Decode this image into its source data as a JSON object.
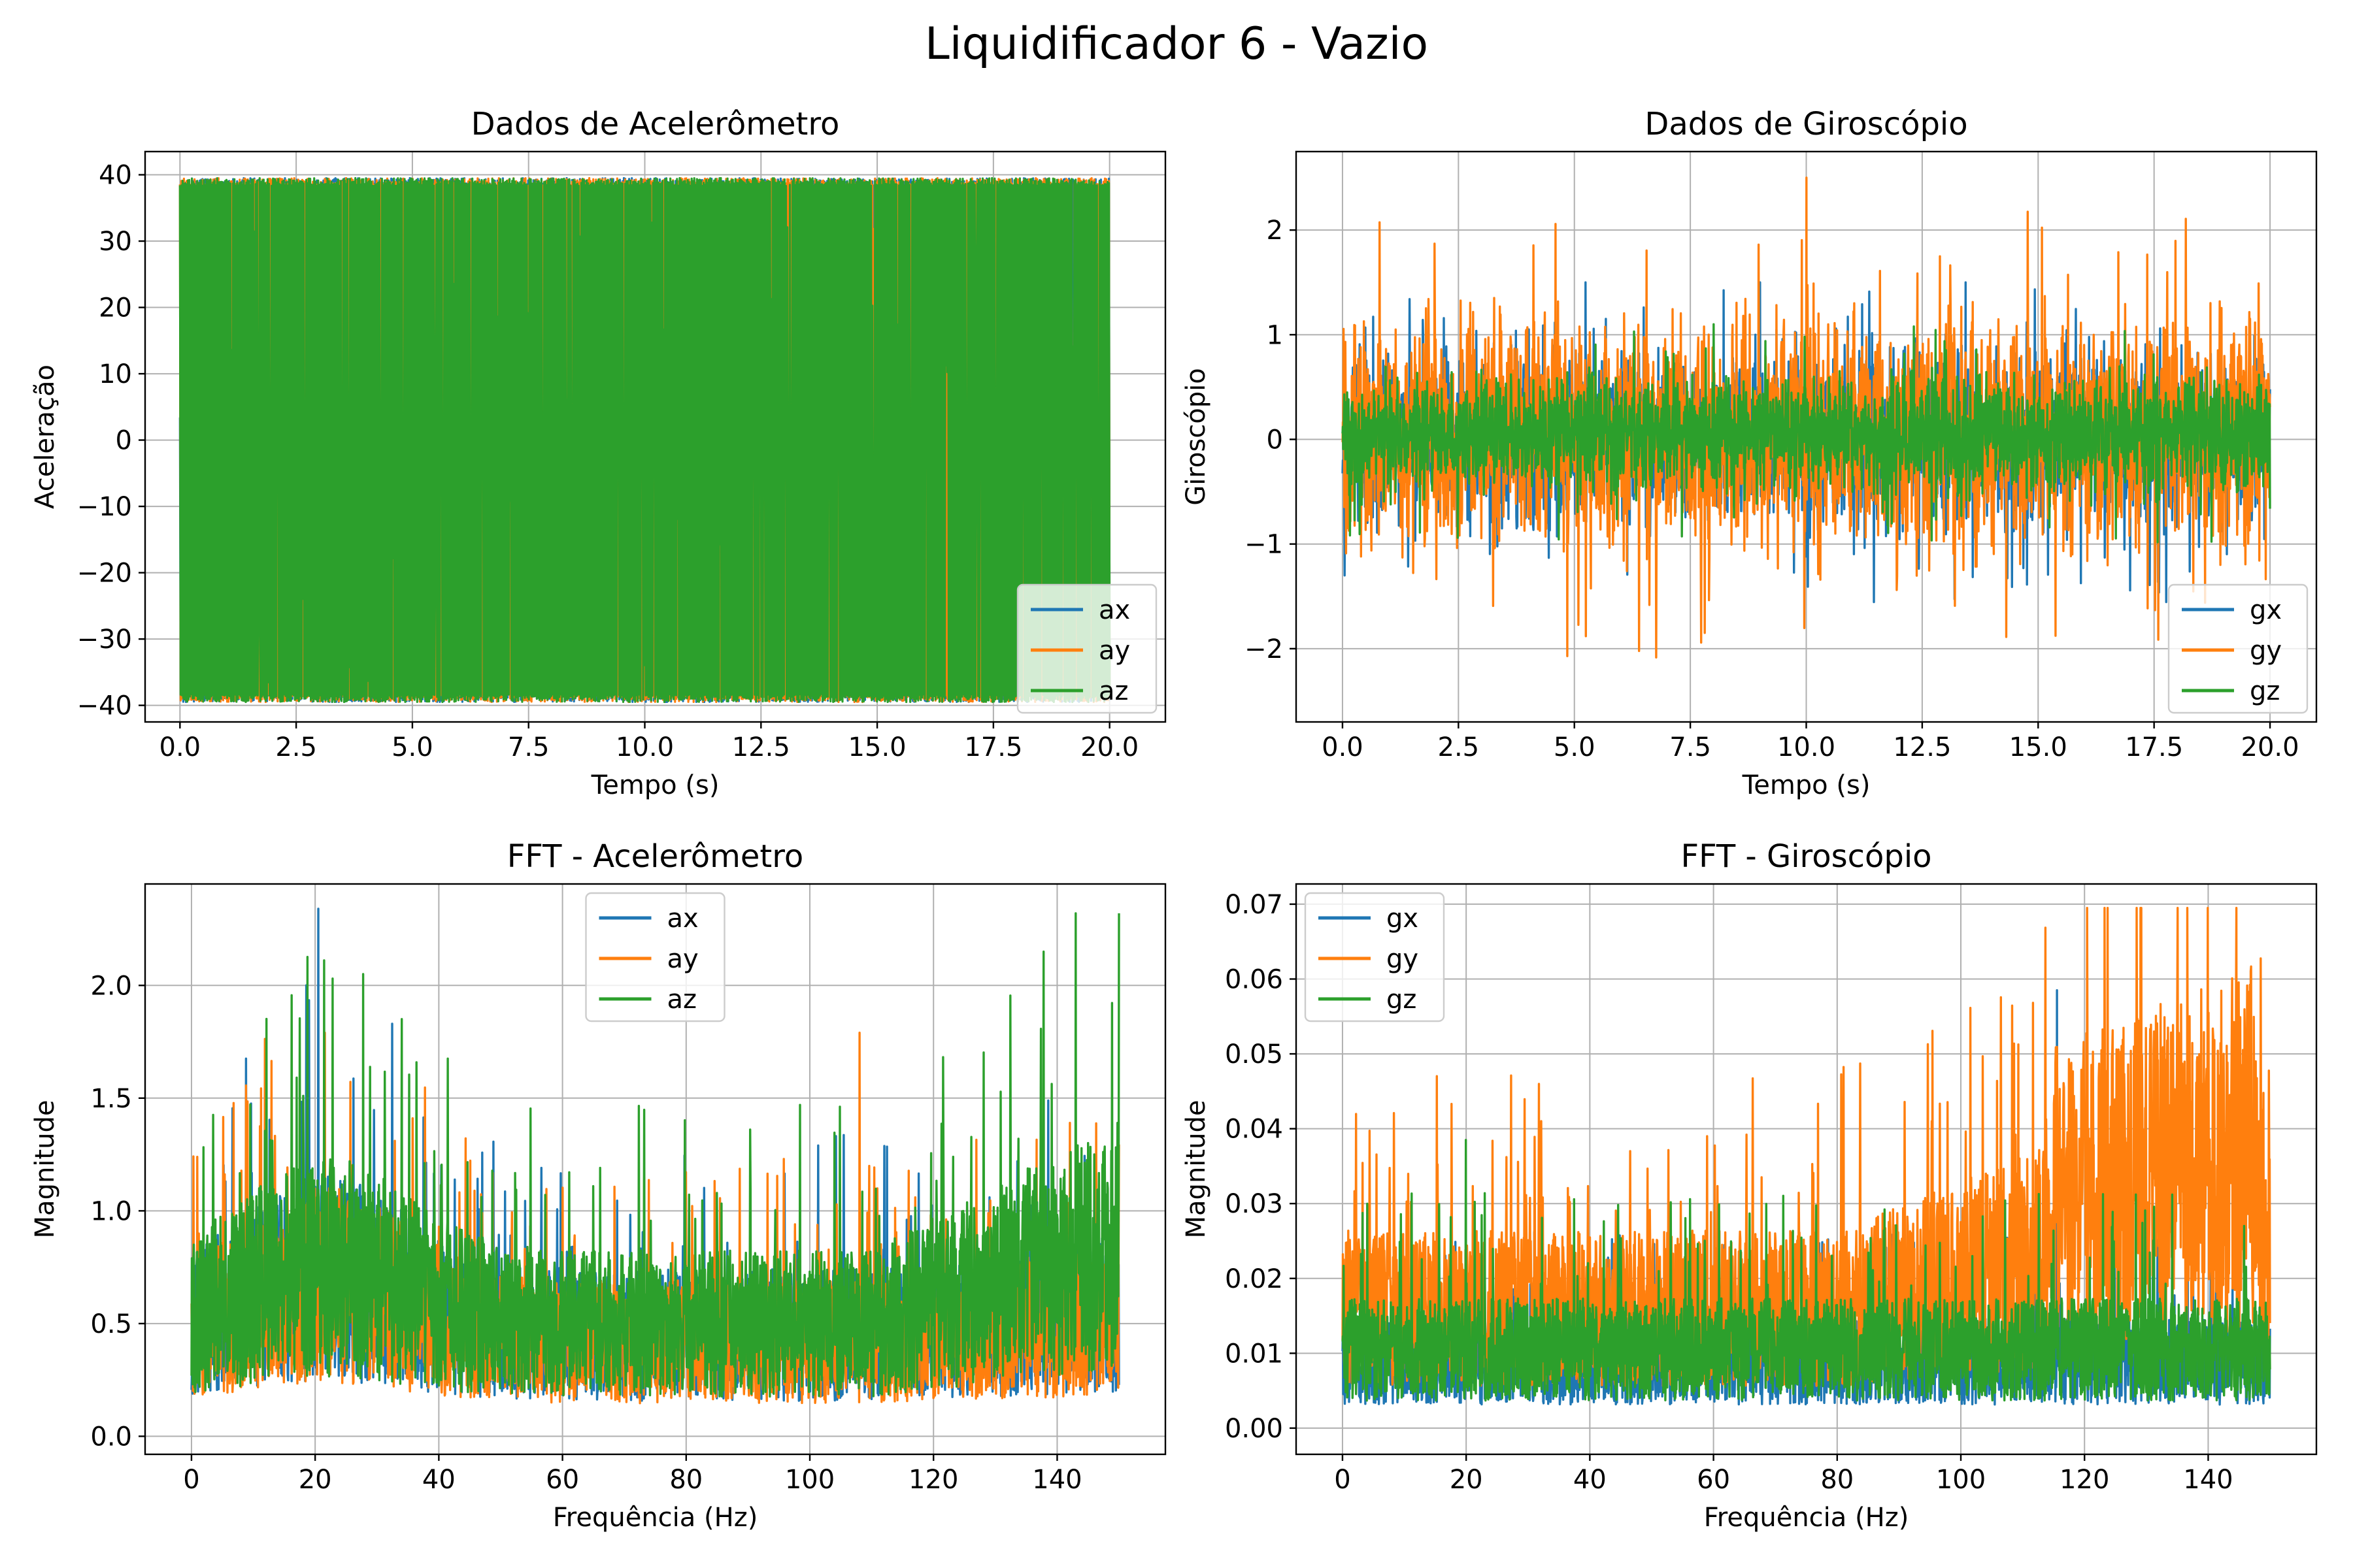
{
  "suptitle": "Liquidificador 6 - Vazio",
  "colors": {
    "series1": "#1f77b4",
    "series2": "#ff7f0e",
    "series3": "#2ca02c",
    "grid": "#b0b0b0"
  },
  "chart_data": [
    {
      "id": "acc",
      "type": "line",
      "title": "Dados de Acelerômetro",
      "xlabel": "Tempo (s)",
      "ylabel": "Aceleração",
      "xlim": [
        -0.75,
        21.2
      ],
      "ylim": [
        -42.5,
        43.5
      ],
      "xticks": [
        "0.0",
        "2.5",
        "5.0",
        "7.5",
        "10.0",
        "12.5",
        "15.0",
        "17.5",
        "20.0"
      ],
      "xtick_values": [
        0,
        2.5,
        5,
        7.5,
        10,
        12.5,
        15,
        17.5,
        20
      ],
      "yticks": [
        "−40",
        "−30",
        "−20",
        "−10",
        "0",
        "10",
        "20",
        "30",
        "40"
      ],
      "ytick_values": [
        -40,
        -30,
        -20,
        -10,
        0,
        10,
        20,
        30,
        40
      ],
      "grid": true,
      "legend_position": "lower-right",
      "series": [
        {
          "name": "ax",
          "x_range": [
            0,
            20
          ],
          "min": -39.5,
          "max": 39.5,
          "typical_band": [
            -39.5,
            39.5
          ]
        },
        {
          "name": "ay",
          "x_range": [
            0,
            20
          ],
          "min": -39.5,
          "max": 39.5,
          "typical_band": [
            -39.5,
            39.5
          ]
        },
        {
          "name": "az",
          "x_range": [
            0,
            20
          ],
          "min": -39.5,
          "max": 39.5,
          "typical_band": [
            -39.5,
            39.5
          ]
        }
      ]
    },
    {
      "id": "gyro",
      "type": "line",
      "title": "Dados de Giroscópio",
      "xlabel": "Tempo (s)",
      "ylabel": "Giroscópio",
      "xlim": [
        -1.0,
        21.0
      ],
      "ylim": [
        -2.7,
        2.75
      ],
      "xticks": [
        "0.0",
        "2.5",
        "5.0",
        "7.5",
        "10.0",
        "12.5",
        "15.0",
        "17.5",
        "20.0"
      ],
      "xtick_values": [
        0,
        2.5,
        5,
        7.5,
        10,
        12.5,
        15,
        17.5,
        20
      ],
      "yticks": [
        "−2",
        "−1",
        "0",
        "1",
        "2"
      ],
      "ytick_values": [
        -2,
        -1,
        0,
        1,
        2
      ],
      "grid": true,
      "legend_position": "lower-right",
      "series": [
        {
          "name": "gx",
          "x_range": [
            0,
            20
          ],
          "min": -2.0,
          "max": 1.5,
          "typical_band": [
            -1.0,
            1.0
          ]
        },
        {
          "name": "gy",
          "x_range": [
            0,
            20
          ],
          "min": -2.45,
          "max": 2.5,
          "typical_band": [
            -1.3,
            1.4
          ]
        },
        {
          "name": "gz",
          "x_range": [
            0,
            20
          ],
          "min": -1.0,
          "max": 1.1,
          "typical_band": [
            -0.6,
            0.7
          ]
        }
      ]
    },
    {
      "id": "fft_acc",
      "type": "line",
      "title": "FFT - Acelerômetro",
      "xlabel": "Frequência (Hz)",
      "ylabel": "Magnitude",
      "xlim": [
        -7.5,
        157.5
      ],
      "ylim": [
        -0.08,
        2.45
      ],
      "xticks": [
        "0",
        "20",
        "40",
        "60",
        "80",
        "100",
        "120",
        "140"
      ],
      "xtick_values": [
        0,
        20,
        40,
        60,
        80,
        100,
        120,
        140
      ],
      "yticks": [
        "0.0",
        "0.5",
        "1.0",
        "1.5",
        "2.0"
      ],
      "ytick_values": [
        0,
        0.5,
        1,
        1.5,
        2
      ],
      "grid": true,
      "legend_position": "upper-center",
      "series": [
        {
          "name": "ax",
          "x_range": [
            0,
            150
          ],
          "min": 0.02,
          "max": 2.34,
          "typical_band": [
            0.1,
            0.9
          ]
        },
        {
          "name": "ay",
          "x_range": [
            0,
            150
          ],
          "min": 0.0,
          "max": 1.79,
          "typical_band": [
            0.1,
            0.85
          ]
        },
        {
          "name": "az",
          "x_range": [
            0,
            150
          ],
          "min": 0.03,
          "max": 2.32,
          "typical_band": [
            0.15,
            1.0
          ]
        }
      ]
    },
    {
      "id": "fft_gyro",
      "type": "line",
      "title": "FFT - Giroscópio",
      "xlabel": "Frequência (Hz)",
      "ylabel": "Magnitude",
      "xlim": [
        -7.5,
        157.5
      ],
      "ylim": [
        -0.0035,
        0.0727
      ],
      "xticks": [
        "0",
        "20",
        "40",
        "60",
        "80",
        "100",
        "120",
        "140"
      ],
      "xtick_values": [
        0,
        20,
        40,
        60,
        80,
        100,
        120,
        140
      ],
      "yticks": [
        "0.00",
        "0.01",
        "0.02",
        "0.03",
        "0.04",
        "0.05",
        "0.06",
        "0.07"
      ],
      "ytick_values": [
        0,
        0.01,
        0.02,
        0.03,
        0.04,
        0.05,
        0.06,
        0.07
      ],
      "grid": true,
      "legend_position": "upper-left",
      "series": [
        {
          "name": "gx",
          "x_range": [
            0,
            150
          ],
          "min": 0.0,
          "max": 0.0585,
          "typical_band": [
            0.002,
            0.02
          ]
        },
        {
          "name": "gy",
          "x_range": [
            0,
            150
          ],
          "min": 0.0,
          "max": 0.0695,
          "typical_band": [
            0.005,
            0.03
          ]
        },
        {
          "name": "gz",
          "x_range": [
            0,
            150
          ],
          "min": 0.0,
          "max": 0.0385,
          "typical_band": [
            0.003,
            0.022
          ]
        }
      ]
    }
  ]
}
